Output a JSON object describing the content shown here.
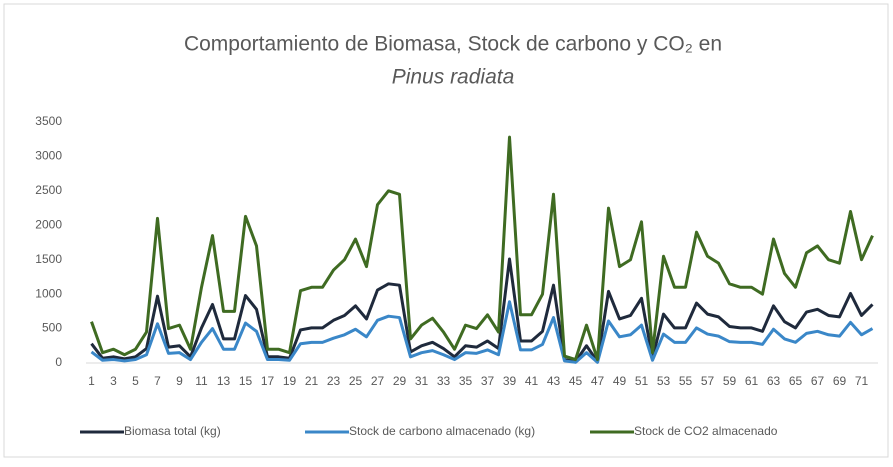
{
  "chart_data": {
    "type": "line",
    "title": "Comportamiento de Biomasa, Stock de carbono y CO₂ en",
    "subtitle": "Pinus radiata",
    "categories": [
      1,
      null,
      3,
      null,
      5,
      null,
      7,
      null,
      9,
      null,
      11,
      null,
      13,
      null,
      15,
      null,
      17,
      null,
      19,
      null,
      21,
      null,
      23,
      null,
      25,
      null,
      27,
      null,
      29,
      null,
      31,
      null,
      33,
      null,
      35,
      null,
      37,
      null,
      39,
      null,
      41,
      null,
      43,
      null,
      45,
      null,
      47,
      null,
      49,
      null,
      51,
      null,
      53,
      null,
      55,
      null,
      57,
      null,
      59,
      null,
      61,
      null,
      63,
      null,
      65,
      null,
      67,
      null,
      69,
      null,
      71,
      null
    ],
    "series": [
      {
        "name": "Biomasa total (kg)",
        "color": "#1f2a3c",
        "values": [
          280,
          70,
          90,
          60,
          90,
          210,
          970,
          230,
          250,
          90,
          510,
          850,
          350,
          350,
          980,
          780,
          90,
          90,
          70,
          480,
          510,
          510,
          620,
          690,
          830,
          640,
          1060,
          1150,
          1130,
          160,
          250,
          300,
          210,
          90,
          250,
          230,
          320,
          210,
          1510,
          320,
          320,
          460,
          1130,
          50,
          20,
          250,
          20,
          1040,
          640,
          690,
          940,
          70,
          710,
          510,
          510,
          870,
          710,
          670,
          530,
          510,
          510,
          460,
          830,
          600,
          510,
          740,
          780,
          690,
          670,
          1010,
          690,
          850
        ]
      },
      {
        "name": "Stock de carbono almacenado (kg)",
        "color": "#3a87c8",
        "values": [
          160,
          40,
          50,
          30,
          50,
          120,
          570,
          140,
          150,
          50,
          300,
          500,
          200,
          200,
          580,
          460,
          50,
          50,
          40,
          280,
          300,
          300,
          360,
          410,
          490,
          380,
          620,
          680,
          660,
          90,
          150,
          180,
          120,
          50,
          150,
          140,
          190,
          120,
          890,
          190,
          190,
          270,
          660,
          30,
          10,
          150,
          10,
          610,
          380,
          410,
          550,
          40,
          420,
          300,
          300,
          510,
          420,
          390,
          310,
          300,
          300,
          270,
          490,
          350,
          300,
          430,
          460,
          410,
          390,
          590,
          410,
          500
        ]
      },
      {
        "name": "Stock de CO2 almacenado",
        "color": "#3f6b22",
        "values": [
          600,
          150,
          200,
          120,
          200,
          450,
          2100,
          500,
          550,
          200,
          1100,
          1850,
          750,
          750,
          2130,
          1700,
          200,
          200,
          150,
          1050,
          1100,
          1100,
          1350,
          1500,
          1800,
          1400,
          2300,
          2500,
          2450,
          350,
          550,
          650,
          450,
          200,
          550,
          500,
          700,
          450,
          3280,
          700,
          700,
          1000,
          2450,
          100,
          50,
          550,
          50,
          2250,
          1400,
          1500,
          2050,
          150,
          1550,
          1100,
          1100,
          1900,
          1550,
          1450,
          1150,
          1100,
          1100,
          1000,
          1800,
          1300,
          1100,
          1600,
          1700,
          1500,
          1450,
          2200,
          1500,
          1850
        ]
      }
    ],
    "ylim": [
      0,
      3500
    ],
    "yticks": [
      0,
      500,
      1000,
      1500,
      2000,
      2500,
      3000,
      3500
    ],
    "grid": false,
    "legend": "bottom"
  }
}
